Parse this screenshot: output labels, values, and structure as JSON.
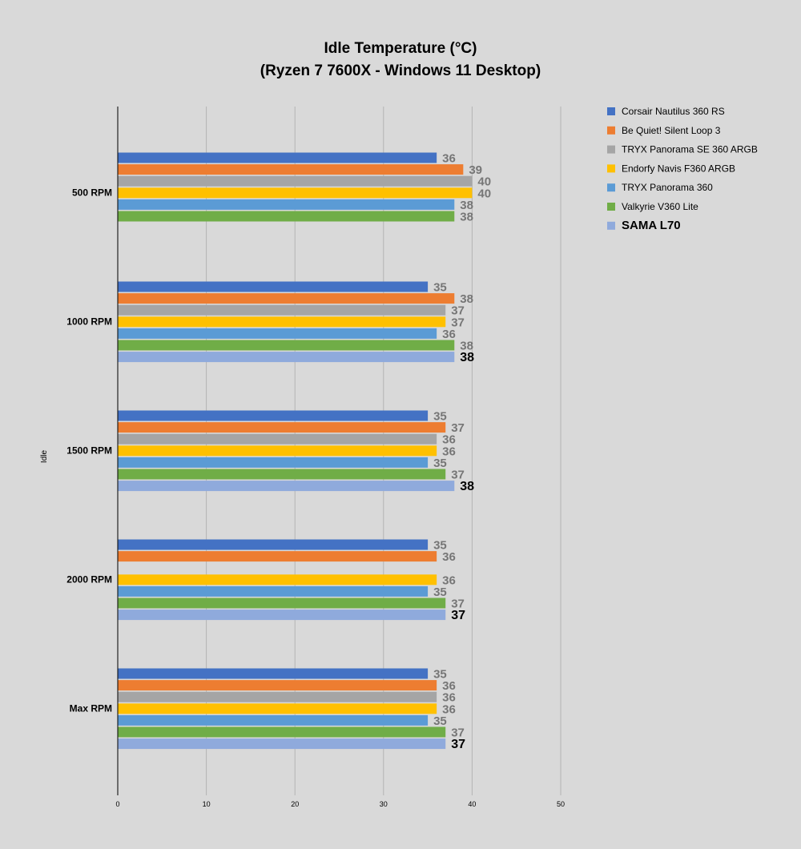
{
  "chart_data": {
    "type": "bar",
    "orientation": "horizontal",
    "title": "Idle Temperature (°C)",
    "subtitle": "(Ryzen 7 7600X - Windows 11 Desktop)",
    "ylabel": "Idle",
    "xlabel": "",
    "xlim": [
      0,
      50
    ],
    "xticks": [
      0,
      10,
      20,
      30,
      40,
      50
    ],
    "grid": true,
    "legend_position": "right",
    "categories": [
      "500 RPM",
      "1000 RPM",
      "1500 RPM",
      "2000 RPM",
      "Max RPM"
    ],
    "series": [
      {
        "name": "Corsair Nautilus 360 RS",
        "color": "#4472c4",
        "values": [
          36,
          35,
          35,
          35,
          35
        ]
      },
      {
        "name": "Be Quiet! Silent Loop 3",
        "color": "#ed7d31",
        "values": [
          39,
          38,
          37,
          36,
          36
        ]
      },
      {
        "name": "TRYX Panorama SE 360 ARGB",
        "color": "#a5a5a5",
        "values": [
          40,
          37,
          36,
          null,
          36
        ]
      },
      {
        "name": "Endorfy Navis F360 ARGB",
        "color": "#ffc000",
        "values": [
          40,
          37,
          36,
          36,
          36
        ]
      },
      {
        "name": "TRYX Panorama 360",
        "color": "#5b9bd5",
        "values": [
          38,
          36,
          35,
          35,
          35
        ]
      },
      {
        "name": "Valkyrie V360 Lite",
        "color": "#70ad47",
        "values": [
          38,
          38,
          37,
          37,
          37
        ]
      },
      {
        "name": "SAMA L70",
        "color": "#8faadc",
        "values": [
          null,
          38,
          38,
          37,
          37
        ],
        "highlight": true
      }
    ]
  }
}
